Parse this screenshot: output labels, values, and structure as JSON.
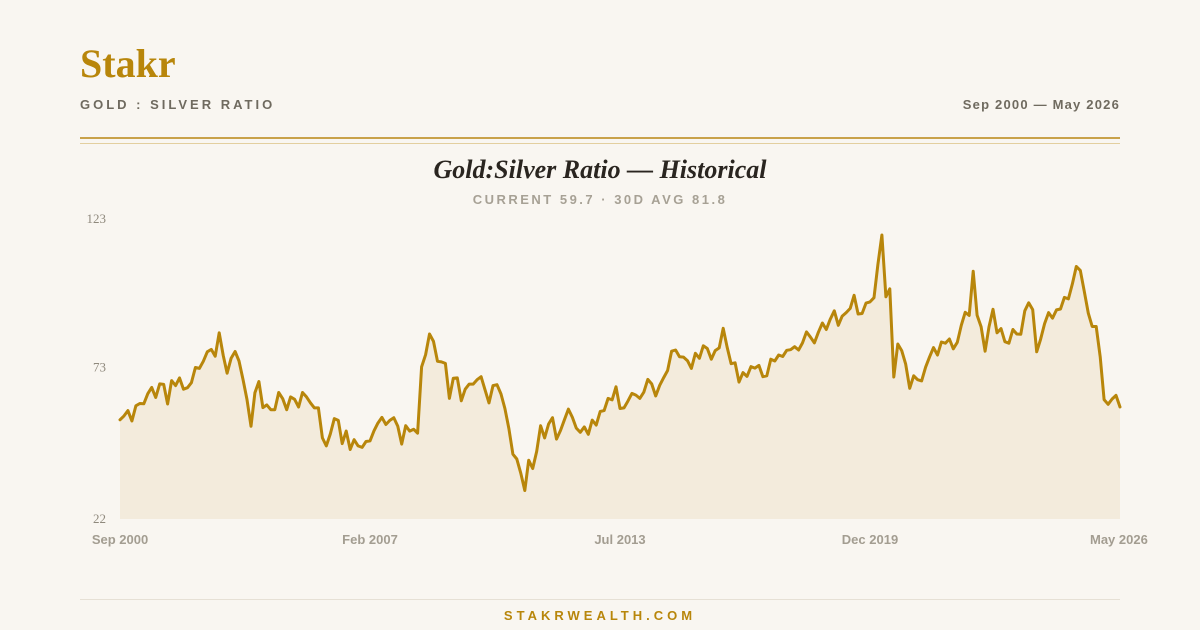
{
  "brand": "Stakr",
  "header": {
    "subtitle": "GOLD : SILVER RATIO",
    "date_range": "Sep 2000 — May 2026"
  },
  "footer": {
    "site": "STAKRWEALTH.COM"
  },
  "colors": {
    "accent": "#b8860b",
    "fill": "#f3ebdc",
    "background": "#f9f6f1"
  },
  "chart_data": {
    "type": "area",
    "title": "Gold:Silver Ratio — Historical",
    "subtitle": "CURRENT 59.7 · 30D AVG 81.8",
    "xlabel": "",
    "ylabel": "",
    "ylim": [
      22,
      123
    ],
    "y_ticks": [
      "123",
      "73",
      "22"
    ],
    "x_ticks": [
      "Sep 2000",
      "Feb 2007",
      "Jul 2013",
      "Dec 2019",
      "May 2026"
    ],
    "x_range": [
      "2000-09",
      "2026-05"
    ],
    "grid": false,
    "series": [
      {
        "values": [
          55.4,
          56.7,
          58.5,
          55,
          60.1,
          60.9,
          60.8,
          64.2,
          66.3,
          62.9,
          67.5,
          67.3,
          60.7,
          68.6,
          66.9,
          69.5,
          65.7,
          66.2,
          67.9,
          73,
          72.7,
          75.1,
          78.3,
          79.1,
          76.8,
          84.7,
          77.1,
          71.1,
          76.1,
          78.4,
          75.2,
          69,
          62.2,
          53.2,
          64.5,
          68.3,
          59.5,
          60.4,
          58.8,
          58.8,
          64.6,
          62.5,
          58.8,
          63.1,
          62.3,
          59.7,
          64.6,
          63.1,
          61.1,
          59.4,
          59.4,
          49.3,
          46.6,
          50.6,
          55.8,
          55.2,
          47.4,
          51.6,
          45.4,
          48.7,
          46.6,
          46.1,
          48.1,
          48.3,
          51.7,
          54.3,
          56.2,
          53.8,
          55.2,
          56.1,
          53.2,
          47.2,
          53.4,
          51.6,
          52.2,
          50.9,
          73.2,
          77.3,
          84.3,
          81.8,
          75.1,
          74.9,
          74.4,
          62.6,
          69.4,
          69.5,
          61.8,
          65.7,
          67.4,
          67.4,
          68.9,
          69.9,
          65.4,
          61.1,
          66.9,
          67.2,
          64.1,
          59.2,
          52.4,
          43.8,
          42.2,
          37.4,
          31.6,
          41.8,
          39,
          44.8,
          53.4,
          49.3,
          54,
          56.1,
          48.9,
          51.8,
          55.4,
          59,
          56.2,
          52.6,
          51.2,
          53,
          50.5,
          55.3,
          53.6,
          58.2,
          58.5,
          62.6,
          62.1,
          66.5,
          59.2,
          59.4,
          61.7,
          64.3,
          63.7,
          62.6,
          64.7,
          69,
          67.5,
          63.4,
          67,
          69.6,
          72,
          78.5,
          78.9,
          76.6,
          76.5,
          75.3,
          72.7,
          77.8,
          76.1,
          80.3,
          79.4,
          75.8,
          78.7,
          79.6,
          86.2,
          79.9,
          74.3,
          74.6,
          68.1,
          71.3,
          70,
          73.3,
          72.8,
          73.7,
          69.9,
          70.2,
          75.8,
          75.2,
          77.2,
          76.7,
          78.8,
          79,
          80,
          78.9,
          81.3,
          85,
          83.2,
          81.3,
          84.9,
          88,
          85.8,
          89.3,
          92.1,
          87.2,
          90.3,
          91.5,
          92.9,
          97.3,
          91,
          91.2,
          94.7,
          95.1,
          96.5,
          107.7,
          117.6,
          96.8,
          99.5,
          69.8,
          80.9,
          78.7,
          74.1,
          66,
          70.2,
          68.9,
          68.5,
          73.1,
          76.5,
          79.7,
          77.2,
          81.6,
          81.2,
          82.6,
          79.3,
          81.5,
          87.2,
          91.6,
          90.5,
          105.4,
          90.6,
          86.7,
          78.5,
          86.7,
          92.6,
          84.7,
          86.1,
          81.7,
          81.2,
          85.8,
          84.3,
          84.2,
          92.1,
          94.8,
          92.5,
          78.3,
          82.5,
          87.8,
          91.5,
          89.6,
          92.4,
          92.7,
          96.6,
          96.1,
          101.2,
          107,
          105.7,
          98.6,
          91.3,
          86.8,
          86.8,
          76.6,
          62.2,
          60.6,
          62.4,
          63.6,
          59.7
        ]
      }
    ]
  }
}
